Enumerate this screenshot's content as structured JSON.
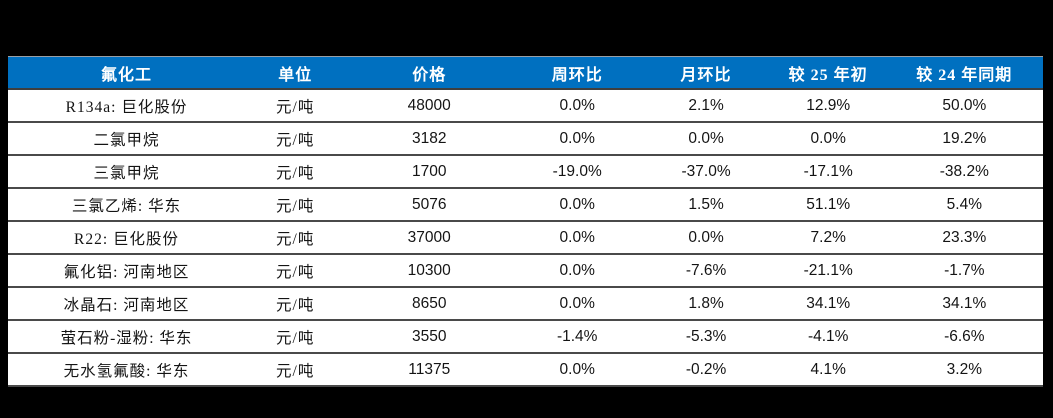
{
  "table": {
    "title_semantic": "fluorochemical-price-table",
    "headers": {
      "product": "氟化工",
      "unit": "单位",
      "price": "价格",
      "wow": "周环比",
      "mom": "月环比",
      "vs_2025_start": "较 25 年初",
      "vs_2024_same_period": "较 24 年同期"
    },
    "rows": [
      {
        "product": "R134a: 巨化股份",
        "unit": "元/吨",
        "price": "48000",
        "wow": "0.0%",
        "mom": "2.1%",
        "vs_2025_start": "12.9%",
        "vs_2024_same_period": "50.0%"
      },
      {
        "product": "二氯甲烷",
        "unit": "元/吨",
        "price": "3182",
        "wow": "0.0%",
        "mom": "0.0%",
        "vs_2025_start": "0.0%",
        "vs_2024_same_period": "19.2%"
      },
      {
        "product": "三氯甲烷",
        "unit": "元/吨",
        "price": "1700",
        "wow": "-19.0%",
        "mom": "-37.0%",
        "vs_2025_start": "-17.1%",
        "vs_2024_same_period": "-38.2%"
      },
      {
        "product": "三氯乙烯: 华东",
        "unit": "元/吨",
        "price": "5076",
        "wow": "0.0%",
        "mom": "1.5%",
        "vs_2025_start": "51.1%",
        "vs_2024_same_period": "5.4%"
      },
      {
        "product": "R22: 巨化股份",
        "unit": "元/吨",
        "price": "37000",
        "wow": "0.0%",
        "mom": "0.0%",
        "vs_2025_start": "7.2%",
        "vs_2024_same_period": "23.3%"
      },
      {
        "product": "氟化铝: 河南地区",
        "unit": "元/吨",
        "price": "10300",
        "wow": "0.0%",
        "mom": "-7.6%",
        "vs_2025_start": "-21.1%",
        "vs_2024_same_period": "-1.7%"
      },
      {
        "product": "冰晶石: 河南地区",
        "unit": "元/吨",
        "price": "8650",
        "wow": "0.0%",
        "mom": "1.8%",
        "vs_2025_start": "34.1%",
        "vs_2024_same_period": "34.1%"
      },
      {
        "product": "萤石粉-湿粉: 华东",
        "unit": "元/吨",
        "price": "3550",
        "wow": "-1.4%",
        "mom": "-5.3%",
        "vs_2025_start": "-4.1%",
        "vs_2024_same_period": "-6.6%"
      },
      {
        "product": "无水氢氟酸: 华东",
        "unit": "元/吨",
        "price": "11375",
        "wow": "0.0%",
        "mom": "-0.2%",
        "vs_2025_start": "4.1%",
        "vs_2024_same_period": "3.2%"
      }
    ]
  },
  "colors": {
    "header_background": "#0070C0",
    "header_text": "#ffffff",
    "row_divider": "#4a4a4a",
    "canvas_background": "#000000",
    "body_text": "#141414"
  }
}
